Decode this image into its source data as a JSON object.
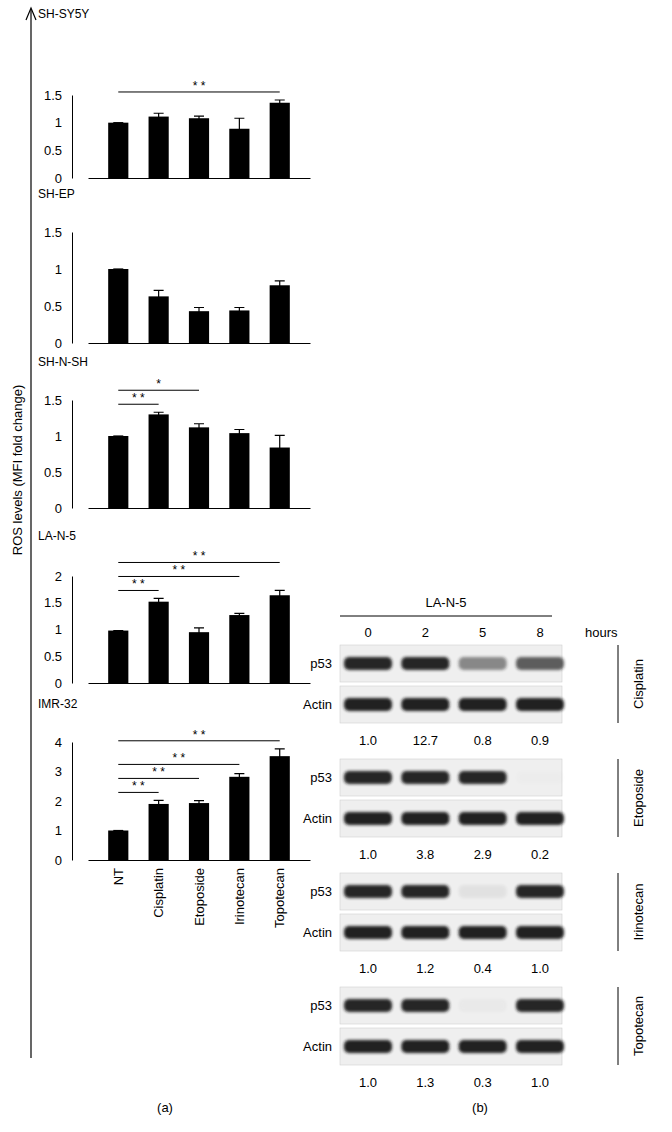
{
  "figure": {
    "ylabel": "ROS levels (MFI fold change)",
    "panel_labels": [
      "(a)",
      "(b)"
    ]
  },
  "chart_data": [
    {
      "type": "bar",
      "title": "SH-SY5Y",
      "color": "#000000",
      "categories": [
        null,
        null,
        null,
        null,
        null
      ],
      "values": [
        1.0,
        1.11,
        1.08,
        0.89,
        1.36
      ],
      "errors": [
        0,
        0.06,
        0.04,
        0.19,
        0.05
      ],
      "ylim": [
        0,
        1.5
      ],
      "yticks": [
        0,
        0.5,
        1,
        1.5
      ],
      "annotations": [
        {
          "text": "* *",
          "between": [
            0,
            4
          ]
        }
      ]
    },
    {
      "type": "bar",
      "title": "SH-EP",
      "color": "#000000",
      "categories": [
        null,
        null,
        null,
        null,
        null
      ],
      "values": [
        1.0,
        0.63,
        0.43,
        0.44,
        0.78
      ],
      "errors": [
        0,
        0.08,
        0.05,
        0.04,
        0.06
      ],
      "ylim": [
        0,
        1.5
      ],
      "yticks": [
        0,
        0.5,
        1,
        1.5
      ]
    },
    {
      "type": "bar",
      "title": "SH-N-SH",
      "color": "#000000",
      "categories": [
        null,
        null,
        null,
        null,
        null
      ],
      "values": [
        1.0,
        1.3,
        1.12,
        1.04,
        0.84
      ],
      "errors": [
        0,
        0.03,
        0.05,
        0.05,
        0.17
      ],
      "ylim": [
        0,
        1.5
      ],
      "yticks": [
        0,
        0.5,
        1,
        1.5
      ],
      "annotations": [
        {
          "text": "* *",
          "between": [
            0,
            1
          ]
        },
        {
          "text": "*",
          "between": [
            0,
            2
          ]
        }
      ]
    },
    {
      "type": "bar",
      "title": "LA-N-5",
      "color": "#000000",
      "categories": [
        null,
        null,
        null,
        null,
        null
      ],
      "values": [
        0.98,
        1.52,
        0.95,
        1.27,
        1.64
      ],
      "errors": [
        0,
        0.06,
        0.08,
        0.03,
        0.09
      ],
      "ylim": [
        0,
        2
      ],
      "yticks": [
        0,
        0.5,
        1,
        1.5,
        2
      ],
      "annotations": [
        {
          "text": "* *",
          "between": [
            0,
            1
          ]
        },
        {
          "text": "* *",
          "between": [
            0,
            3
          ]
        },
        {
          "text": "* *",
          "between": [
            0,
            4
          ]
        }
      ]
    },
    {
      "type": "bar",
      "title": "IMR-32",
      "color": "#000000",
      "categories": [
        "NT",
        "Cisplatin",
        "Etoposide",
        "Irinotecan",
        "Topotecan"
      ],
      "values": [
        1.0,
        1.9,
        1.93,
        2.82,
        3.52
      ],
      "errors": [
        0,
        0.12,
        0.08,
        0.11,
        0.25
      ],
      "ylim": [
        0,
        4
      ],
      "yticks": [
        0,
        1,
        2,
        3,
        4
      ],
      "annotations": [
        {
          "text": "* *",
          "between": [
            0,
            1
          ]
        },
        {
          "text": "* *",
          "between": [
            0,
            2
          ]
        },
        {
          "text": "* *",
          "between": [
            0,
            3
          ]
        },
        {
          "text": "* *",
          "between": [
            0,
            4
          ]
        }
      ]
    }
  ],
  "western_blot": {
    "title": "LA-N-5",
    "time_points": [
      0,
      2,
      5,
      8
    ],
    "time_unit": "hours",
    "treatments": [
      {
        "name": "Cisplatin",
        "rows": [
          "p53",
          "Actin"
        ],
        "values": [
          1.0,
          12.7,
          0.8,
          0.9
        ],
        "value_labels": [
          "1.0",
          "12.7",
          "0.8",
          "0.9"
        ]
      },
      {
        "name": "Etoposide",
        "rows": [
          "p53",
          "Actin"
        ],
        "values": [
          1.0,
          3.8,
          2.9,
          0.2
        ],
        "value_labels": [
          "1.0",
          "3.8",
          "2.9",
          "0.2"
        ]
      },
      {
        "name": "Irinotecan",
        "rows": [
          "p53",
          "Actin"
        ],
        "values": [
          1.0,
          1.2,
          0.4,
          1.0
        ],
        "value_labels": [
          "1.0",
          "1.2",
          "0.4",
          "1.0"
        ]
      },
      {
        "name": "Topotecan",
        "rows": [
          "p53",
          "Actin"
        ],
        "values": [
          1.0,
          1.3,
          0.3,
          1.0
        ],
        "value_labels": [
          "1.0",
          "1.3",
          "0.3",
          "1.0"
        ]
      }
    ]
  }
}
